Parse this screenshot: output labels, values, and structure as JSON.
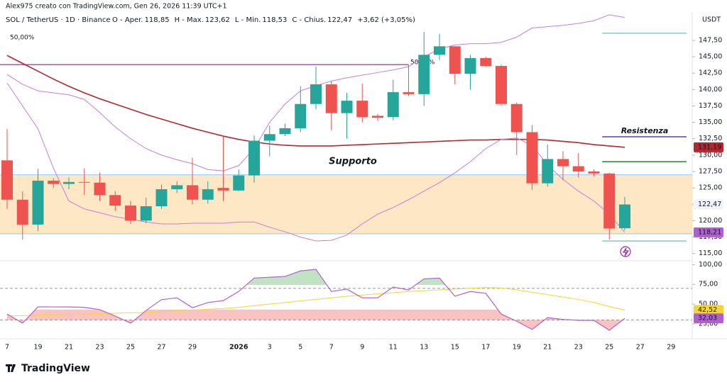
{
  "header": "Alex975 creato con TradingView.com, Gen 26, 2026 11:39 UTC+1",
  "legend": {
    "symbol": "SOL / TetherUS · 1D · Binance",
    "items": [
      {
        "label": "O - Aper.",
        "value": "118,85"
      },
      {
        "label": "H - Max.",
        "value": "123,62"
      },
      {
        "label": "L - Min.",
        "value": "118,53"
      },
      {
        "label": "C - Chius.",
        "value": "122,47"
      }
    ],
    "change": "+3,62 (+3,05%)"
  },
  "logo": "TradingView",
  "chart_data": {
    "type": "candlestick",
    "currency": "USDT",
    "categories": [
      "7",
      null,
      "19",
      null,
      "21",
      null,
      "23",
      null,
      "25",
      null,
      "27",
      null,
      "29",
      null,
      null,
      "2026",
      null,
      "3",
      null,
      "5",
      null,
      "7",
      null,
      "9",
      null,
      "11",
      null,
      "13",
      null,
      "15",
      null,
      "17",
      null,
      "19",
      null,
      "21",
      null,
      "23",
      null,
      "25",
      null,
      "27",
      null,
      "29"
    ],
    "open": [
      129.2,
      123.2,
      119.4,
      126.1,
      125.6,
      125.9,
      125.8,
      123.9,
      122.3,
      120,
      122.2,
      124.8,
      125.4,
      123.2,
      125,
      124.6,
      126.9,
      132.2,
      133.2,
      134.1,
      137.8,
      140.8,
      136.4,
      138.3,
      136,
      135.8,
      139.6,
      139.3,
      145.3,
      146.6,
      142.4,
      144.8,
      143.6,
      137.8,
      133.5,
      125.7,
      129.4,
      128.3,
      127.5,
      127.2,
      118.85,
      null,
      null,
      null
    ],
    "high": [
      134,
      124.5,
      127.9,
      126.5,
      126.6,
      128,
      127.3,
      124.5,
      123,
      123.5,
      125.5,
      126,
      129.6,
      126,
      132.9,
      127.8,
      133,
      134.5,
      134.8,
      140.5,
      143.5,
      141.3,
      139.5,
      140.9,
      136.3,
      141.5,
      143.8,
      148.8,
      148.5,
      146.6,
      145.3,
      145,
      143.8,
      138,
      134.6,
      131.6,
      130.6,
      130.3,
      127.8,
      127.3,
      123.62,
      null,
      null,
      null
    ],
    "low": [
      121.8,
      117.1,
      118.4,
      125,
      124.8,
      123.9,
      123,
      121.5,
      119.5,
      119.6,
      121.8,
      124.2,
      122.5,
      122.6,
      123,
      124.5,
      125.8,
      129.8,
      132.9,
      133.5,
      137,
      133.8,
      132.5,
      135,
      135.2,
      135.3,
      139,
      137.5,
      144.5,
      140.8,
      140,
      143.5,
      137.5,
      130,
      124.7,
      125.2,
      126.2,
      126.6,
      126.8,
      117.1,
      118.53,
      null,
      null,
      null
    ],
    "close": [
      123.2,
      119.4,
      126.1,
      125.6,
      125.9,
      125.8,
      123.9,
      122.3,
      120,
      122.2,
      124.8,
      125.4,
      123.2,
      124.8,
      124.6,
      126.9,
      132.2,
      133.2,
      134.1,
      137.8,
      140.8,
      136.4,
      138.3,
      135.8,
      135.7,
      139.6,
      139.3,
      145.3,
      146.6,
      142.4,
      144.8,
      143.6,
      137.8,
      133.5,
      125.7,
      129.4,
      128.3,
      127.5,
      127.2,
      118.8,
      122.47,
      null,
      null,
      null
    ],
    "last_close_label": "122,47",
    "up_color": "#26a69a",
    "down_color": "#ef5350",
    "lines": [
      {
        "color": "#b2282e",
        "values": [
          145.2,
          144.0,
          142.8,
          141.6,
          140.5,
          139.5,
          138.6,
          137.8,
          137.0,
          136.2,
          135.5,
          134.8,
          134.1,
          133.5,
          132.9,
          132.4,
          132.0,
          131.7,
          131.5,
          131.4,
          131.4,
          131.4,
          131.5,
          131.6,
          131.7,
          131.8,
          131.9,
          132.0,
          132.1,
          132.2,
          132.3,
          132.3,
          132.4,
          132.4,
          132.4,
          132.3,
          132.1,
          131.9,
          131.6,
          131.4,
          131.19,
          null,
          null,
          null
        ],
        "last_value_label": "131,19"
      },
      {
        "color": "#c77ddb",
        "values": [
          142.3,
          140.8,
          139.8,
          139.5,
          139.2,
          138.5,
          136.5,
          134.3,
          132.5,
          131.0,
          130.0,
          129.3,
          128.7,
          127.8,
          127.6,
          128.4,
          131.0,
          135.0,
          137.8,
          139.8,
          140.6,
          141.3,
          141.8,
          142.2,
          142.6,
          143.0,
          143.5,
          145.0,
          146.2,
          146.8,
          147.0,
          147.0,
          147.2,
          148.0,
          149.4,
          149.6,
          149.8,
          150.1,
          150.5,
          151.4,
          151.0,
          null,
          null,
          null
        ]
      },
      {
        "color": "#c77ddb",
        "values": [
          141.0,
          137.5,
          134,
          128,
          123,
          121.8,
          121.2,
          120.6,
          120.2,
          119.8,
          119.5,
          119.5,
          119.6,
          119.6,
          119.6,
          119.8,
          119.8,
          119.0,
          118.3,
          117.5,
          116.9,
          117.0,
          117.8,
          119.5,
          121.0,
          122.0,
          123.2,
          124.5,
          125.8,
          127.3,
          129.0,
          131.0,
          132.4,
          132.6,
          131.5,
          128.5,
          126.3,
          124.5,
          123.0,
          121.0,
          118.21,
          null,
          null,
          null
        ],
        "last_value_label": "118,21"
      }
    ],
    "zone": {
      "from": 118.0,
      "to": 127.0,
      "label": "Supporto",
      "color": "#fde7c4"
    },
    "levels": [
      {
        "value": 143.8,
        "color": "#b04fc8",
        "from": 0,
        "to": 26
      },
      {
        "value": 132.8,
        "color": "#5b3fa8",
        "from": 39,
        "to": 44,
        "label": "Resistenza"
      },
      {
        "value": 129.0,
        "color": "#2e7d32",
        "from": 39,
        "to": 44
      },
      {
        "value": 148.6,
        "color": "#80cbc4",
        "from": 39,
        "to": 44
      },
      {
        "value": 116.9,
        "color": "#80cbc4",
        "from": 39,
        "to": 44
      }
    ],
    "fib_labels": [
      "50,00%",
      "50,00%"
    ],
    "ylim": [
      114.2,
      151.5
    ],
    "yticks": [
      {
        "value": 115,
        "label": "115,00"
      },
      {
        "value": 117.5,
        "label": "117,50"
      },
      {
        "value": 120,
        "label": "120,00"
      },
      {
        "value": 122.5,
        "label": "122,50"
      },
      {
        "value": 125,
        "label": "125,00"
      },
      {
        "value": 127.5,
        "label": "127,50"
      },
      {
        "value": 130,
        "label": "130,00"
      },
      {
        "value": 132.5,
        "label": "132,50"
      },
      {
        "value": 135,
        "label": "135,00"
      },
      {
        "value": 137.5,
        "label": "137,50"
      },
      {
        "value": 140,
        "label": "140,00"
      },
      {
        "value": 142.5,
        "label": "142,50"
      },
      {
        "value": 145,
        "label": "145,00"
      },
      {
        "value": 147.5,
        "label": "147,50"
      }
    ],
    "rsi": {
      "values": [
        37.5,
        26,
        46.6,
        46.5,
        46.4,
        46.0,
        43,
        35,
        26,
        42,
        55.7,
        58,
        45.5,
        52,
        54.5,
        66,
        83,
        84,
        85,
        92,
        94,
        66,
        69,
        58,
        58,
        71.6,
        68,
        82,
        83,
        60,
        66,
        63.6,
        37.5,
        28.4,
        18,
        33,
        30.7,
        29.5,
        29.5,
        17,
        32.03,
        null,
        null,
        null
      ],
      "value_label": "32,03",
      "color": "#b05fd0",
      "ma": [
        35,
        35.5,
        36,
        36.5,
        37,
        37.5,
        38,
        38.5,
        39,
        39.5,
        40.5,
        41.5,
        42.5,
        43.5,
        44.5,
        46,
        48,
        50,
        52,
        54,
        56,
        58,
        60,
        61.5,
        63,
        64.5,
        66,
        67,
        68,
        69,
        70,
        71,
        70.5,
        68,
        65,
        62,
        59,
        56,
        52,
        47,
        42.52,
        null,
        null,
        null
      ],
      "ma_label": "42,52",
      "ma_color": "#f5d532",
      "bands": [
        30,
        70
      ],
      "ylim": [
        8,
        103
      ],
      "yticks": [
        {
          "value": 25,
          "label": "25,00"
        },
        {
          "value": 50,
          "label": "50,00"
        },
        {
          "value": 75,
          "label": "75,00"
        },
        {
          "value": 100,
          "label": "100,00"
        }
      ]
    }
  }
}
